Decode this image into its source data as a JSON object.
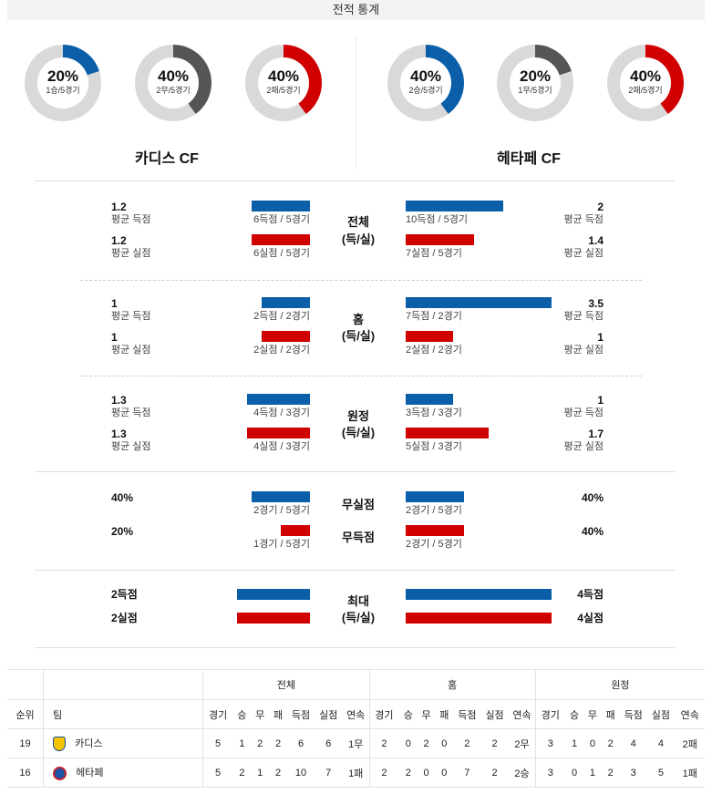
{
  "header": {
    "title": "전적 통계"
  },
  "donuts": [
    {
      "pct": "20%",
      "label": "1승/5경기",
      "fraction": 0.2,
      "color": "#0a5fa8"
    },
    {
      "pct": "40%",
      "label": "2무/5경기",
      "fraction": 0.4,
      "color": "#555555"
    },
    {
      "pct": "40%",
      "label": "2패/5경기",
      "fraction": 0.4,
      "color": "#d10000"
    },
    {
      "pct": "40%",
      "label": "2승/5경기",
      "fraction": 0.4,
      "color": "#0a5fa8"
    },
    {
      "pct": "20%",
      "label": "1무/5경기",
      "fraction": 0.2,
      "color": "#555555"
    },
    {
      "pct": "40%",
      "label": "2패/5경기",
      "fraction": 0.4,
      "color": "#d10000"
    }
  ],
  "teams": {
    "home": "카디스 CF",
    "away": "헤타페 CF"
  },
  "labels": {
    "avg_scored": "평균 득점",
    "avg_conceded": "평균 실점",
    "total": "전체",
    "score_loss": "(득/실)",
    "home": "홈",
    "away": "원정",
    "clean_sheet": "무실점",
    "no_score": "무득점",
    "max": "최대"
  },
  "total": {
    "home_scored": "1.2",
    "home_scored_bar": "6득점 / 5경기",
    "home_conceded": "1.2",
    "home_conceded_bar": "6실점 / 5경기",
    "away_scored": "2",
    "away_scored_bar": "10득점 / 5경기",
    "away_conceded": "1.4",
    "away_conceded_bar": "7실점 / 5경기"
  },
  "home": {
    "home_scored": "1",
    "home_scored_bar": "2득점 / 2경기",
    "home_conceded": "1",
    "home_conceded_bar": "2실점 / 2경기",
    "away_scored": "3.5",
    "away_scored_bar": "7득점 / 2경기",
    "away_conceded": "1",
    "away_conceded_bar": "2실점 / 2경기"
  },
  "away": {
    "home_scored": "1.3",
    "home_scored_bar": "4득점 / 3경기",
    "home_conceded": "1.3",
    "home_conceded_bar": "4실점 / 3경기",
    "away_scored": "1",
    "away_scored_bar": "3득점 / 3경기",
    "away_conceded": "1.7",
    "away_conceded_bar": "5실점 / 3경기"
  },
  "clean": {
    "home_cs": "40%",
    "home_cs_bar": "2경기 / 5경기",
    "home_ns": "20%",
    "home_ns_bar": "1경기 / 5경기",
    "away_cs": "40%",
    "away_cs_bar": "2경기 / 5경기",
    "away_ns": "40%",
    "away_ns_bar": "2경기 / 5경기"
  },
  "max": {
    "home_scored": "2득점",
    "home_conceded": "2실점",
    "away_scored": "4득점",
    "away_conceded": "4실점"
  },
  "standings": {
    "groups": [
      "전체",
      "홈",
      "원정"
    ],
    "headers": [
      "순위",
      "팀",
      "경기",
      "승",
      "무",
      "패",
      "득점",
      "실점",
      "연속"
    ],
    "rows": [
      {
        "rank": "19",
        "team": "카디스",
        "total": [
          "5",
          "1",
          "2",
          "2",
          "6",
          "6",
          "1무"
        ],
        "home": [
          "2",
          "0",
          "2",
          "0",
          "2",
          "2",
          "2무"
        ],
        "away": [
          "3",
          "1",
          "0",
          "2",
          "4",
          "4",
          "2패"
        ]
      },
      {
        "rank": "16",
        "team": "헤타페",
        "total": [
          "5",
          "2",
          "1",
          "2",
          "10",
          "7",
          "1패"
        ],
        "home": [
          "2",
          "2",
          "0",
          "0",
          "7",
          "2",
          "2승"
        ],
        "away": [
          "3",
          "0",
          "1",
          "2",
          "3",
          "5",
          "1패"
        ]
      }
    ]
  }
}
